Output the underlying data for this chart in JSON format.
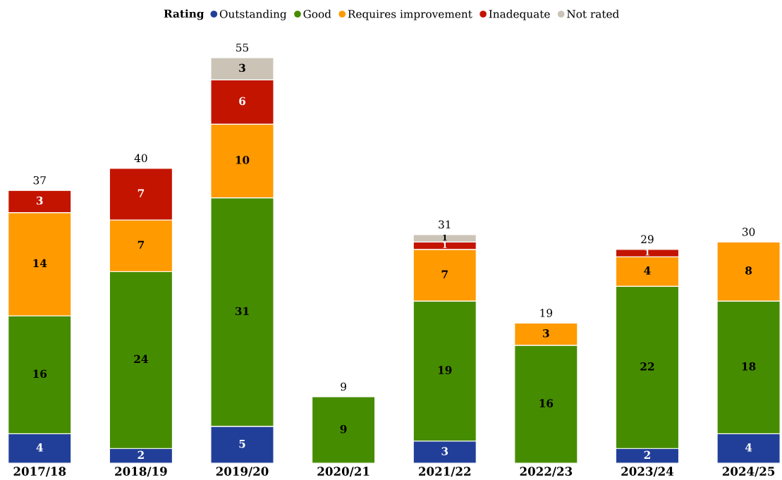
{
  "chart_data": {
    "type": "bar",
    "stacked": true,
    "legend_title": "Rating",
    "legend": "top",
    "data_labels": true,
    "tick_labels": "x",
    "grid": false,
    "categories": [
      "2017/18",
      "2018/19",
      "2019/20",
      "2020/21",
      "2021/22",
      "2022/23",
      "2023/24",
      "2024/25"
    ],
    "series": [
      {
        "name": "Outstanding",
        "color": "#213f99",
        "values": [
          4,
          2,
          5,
          null,
          3,
          null,
          2,
          4
        ]
      },
      {
        "name": "Good",
        "color": "#468c00",
        "values": [
          16,
          24,
          31,
          9,
          19,
          16,
          22,
          18
        ]
      },
      {
        "name": "Requires improvement",
        "color": "#ff9a00",
        "values": [
          14,
          7,
          10,
          null,
          7,
          3,
          4,
          8
        ]
      },
      {
        "name": "Inadequate",
        "color": "#c31400",
        "values": [
          3,
          7,
          6,
          null,
          1,
          null,
          1,
          null
        ]
      },
      {
        "name": "Not rated",
        "color": "#cbc4b6",
        "values": [
          null,
          null,
          3,
          null,
          1,
          null,
          null,
          null
        ]
      }
    ],
    "totals": [
      "37",
      "40",
      "55",
      "9",
      "31",
      "19",
      "29",
      "30"
    ]
  }
}
